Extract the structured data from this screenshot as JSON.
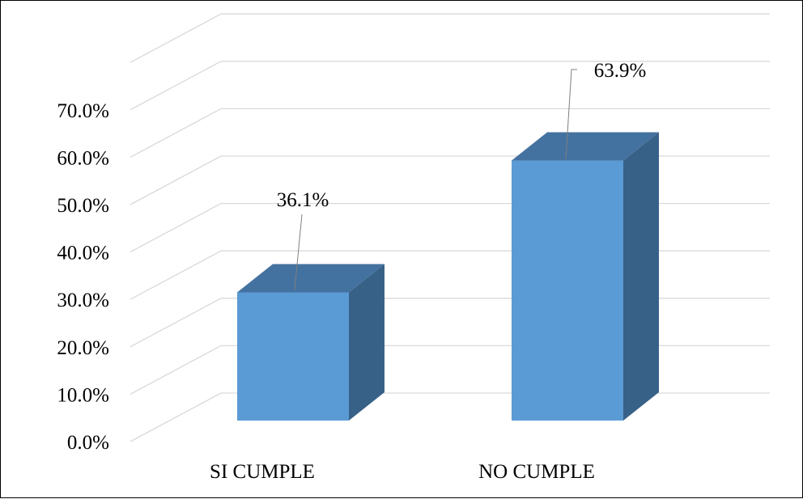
{
  "chart_data": {
    "type": "bar",
    "style": "3d-column",
    "categories": [
      "SI CUMPLE",
      "NO CUMPLE"
    ],
    "values": [
      36.1,
      63.9
    ],
    "value_labels": [
      "36.1%",
      "63.9%"
    ],
    "y_ticks": [
      "0.0%",
      "10.0%",
      "20.0%",
      "30.0%",
      "40.0%",
      "50.0%",
      "60.0%",
      "70.0%"
    ],
    "ylim": [
      0,
      80
    ],
    "y_tick_step": 10,
    "grid": true,
    "legend": "none",
    "title": "",
    "xlabel": "",
    "ylabel": "",
    "colors": {
      "bar_front": "#5b9bd5",
      "bar_top": "#4472a0",
      "bar_side": "#386188",
      "grid": "#d9d9d9"
    }
  }
}
